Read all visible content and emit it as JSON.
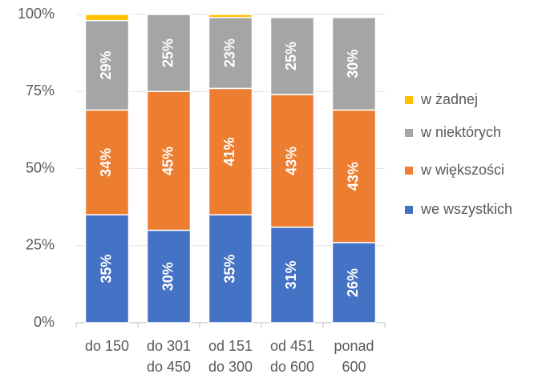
{
  "chart_data": {
    "type": "stacked_bar",
    "categories": [
      [
        "do 150"
      ],
      [
        "do 301",
        "do 450"
      ],
      [
        "od 151",
        "do 300"
      ],
      [
        "od 451",
        "do 600"
      ],
      [
        "ponad",
        "600"
      ]
    ],
    "series": [
      {
        "name": "we wszystkich",
        "color": "#4472c4",
        "values": [
          35,
          30,
          35,
          31,
          26
        ],
        "value_labels": [
          "35%",
          "30%",
          "35%",
          "31%",
          "26%"
        ]
      },
      {
        "name": "w większości",
        "color": "#ed7d31",
        "values": [
          34,
          45,
          41,
          43,
          43
        ],
        "value_labels": [
          "34%",
          "45%",
          "41%",
          "43%",
          "43%"
        ]
      },
      {
        "name": "w niektórych",
        "color": "#a5a5a5",
        "values": [
          29,
          25,
          23,
          25,
          30
        ],
        "value_labels": [
          "29%",
          "25%",
          "23%",
          "25%",
          "30%"
        ]
      },
      {
        "name": "w żadnej",
        "color": "#ffc000",
        "values": [
          2,
          0,
          1,
          0,
          0
        ]
      }
    ],
    "ylim": [
      0,
      100
    ],
    "yticks": [
      {
        "value": 0,
        "label": "0%"
      },
      {
        "value": 25,
        "label": "25%"
      },
      {
        "value": 50,
        "label": "50%"
      },
      {
        "value": 75,
        "label": "75%"
      },
      {
        "value": 100,
        "label": "100%"
      }
    ],
    "grid": true,
    "legend": "right"
  }
}
